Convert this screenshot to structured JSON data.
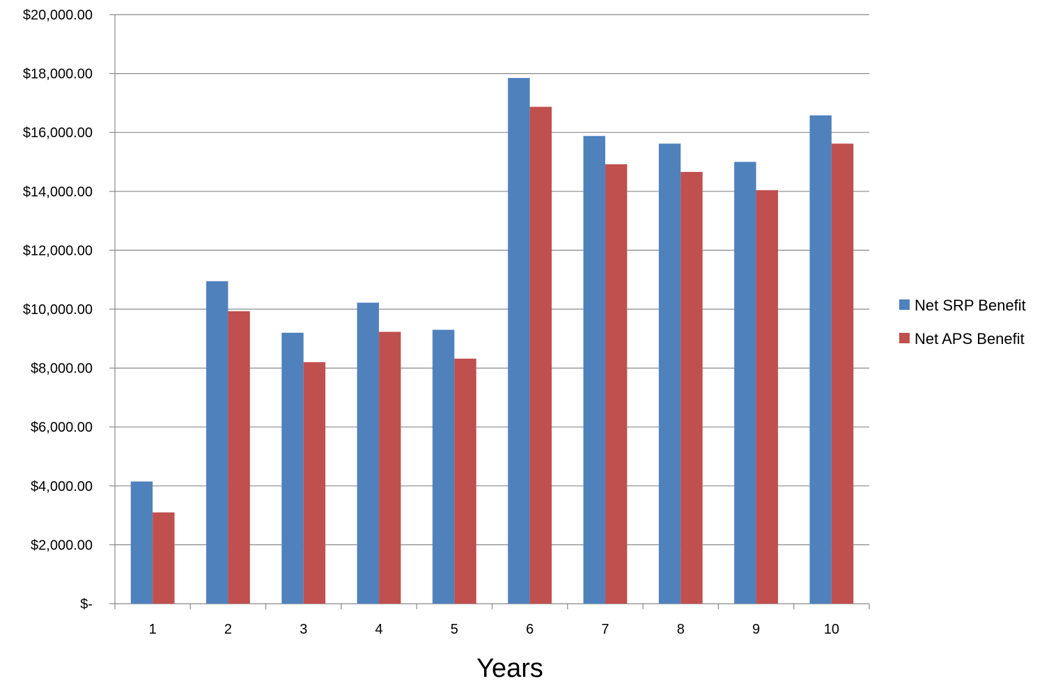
{
  "chart_data": {
    "type": "bar",
    "title": "",
    "xlabel": "Years",
    "ylabel": "",
    "categories": [
      "1",
      "2",
      "3",
      "4",
      "5",
      "6",
      "7",
      "8",
      "9",
      "10"
    ],
    "series": [
      {
        "name": "Net SRP Benefit",
        "color": "#4F81BD",
        "values": [
          4150,
          10950,
          9200,
          10220,
          9300,
          17850,
          15880,
          15620,
          15000,
          16580
        ]
      },
      {
        "name": "Net APS Benefit",
        "color": "#C0504D",
        "values": [
          3100,
          9930,
          8200,
          9230,
          8320,
          16870,
          14920,
          14660,
          14040,
          15620
        ]
      }
    ],
    "ylim": [
      0,
      20000
    ],
    "ytick_values": [
      0,
      2000,
      4000,
      6000,
      8000,
      10000,
      12000,
      14000,
      16000,
      18000,
      20000
    ],
    "ytick_labels": [
      "$-",
      "$2,000.00",
      "$4,000.00",
      "$6,000.00",
      "$8,000.00",
      "$10,000.00",
      "$12,000.00",
      "$14,000.00",
      "$16,000.00",
      "$18,000.00",
      "$20,000.00"
    ],
    "grid": true,
    "legend": "right",
    "gridline_color": "#888888"
  }
}
